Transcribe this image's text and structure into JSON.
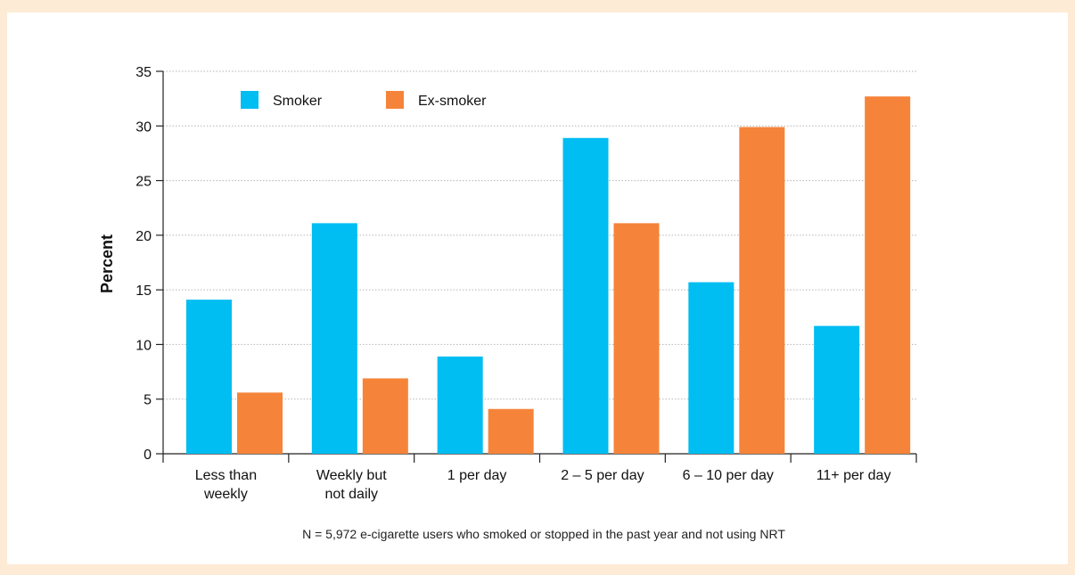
{
  "chart_data": {
    "type": "bar",
    "categories": [
      [
        "Less than",
        "weekly"
      ],
      [
        "Weekly but",
        "not daily"
      ],
      [
        "1 per day"
      ],
      [
        "2 – 5 per day"
      ],
      [
        "6 – 10 per day"
      ],
      [
        "11+ per day"
      ]
    ],
    "series": [
      {
        "name": "Smoker",
        "color": "#00bdf2",
        "values": [
          14.1,
          21.1,
          8.9,
          28.9,
          15.7,
          11.7
        ]
      },
      {
        "name": "Ex-smoker",
        "color": "#f5843a",
        "values": [
          5.6,
          6.9,
          4.1,
          21.1,
          29.9,
          32.7
        ]
      }
    ],
    "ylabel": "Percent",
    "xlabel": "",
    "ylim": [
      0,
      35
    ],
    "yticks": [
      0,
      5,
      10,
      15,
      20,
      25,
      30,
      35
    ],
    "grid": true,
    "legend_position": "top-left",
    "note": "N = 5,972 e-cigarette users who smoked or stopped in the past year and not using NRT"
  }
}
